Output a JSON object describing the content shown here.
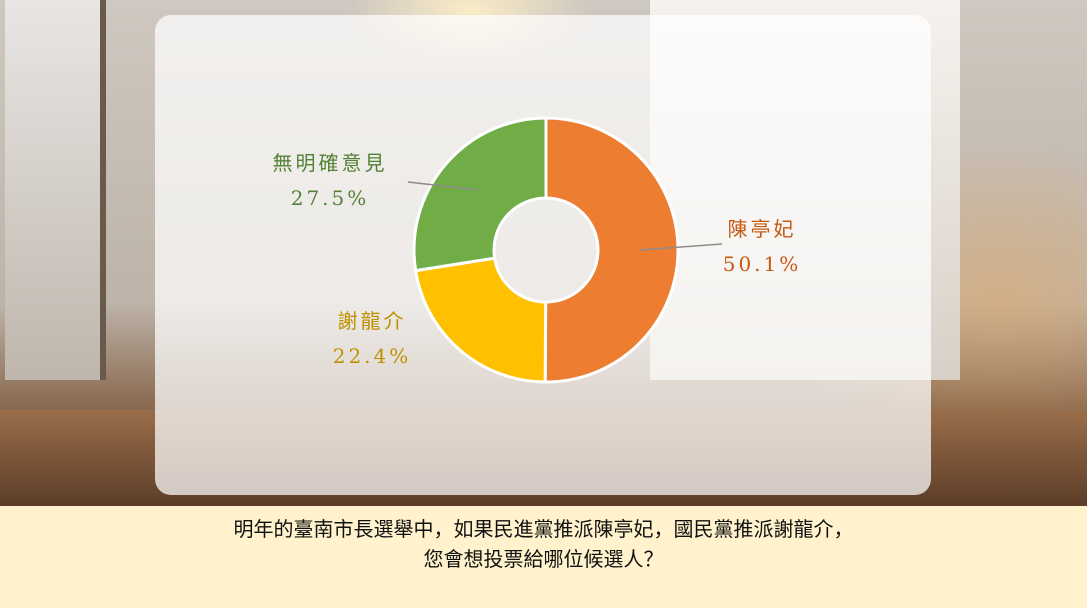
{
  "chart_data": {
    "type": "pie",
    "style": "donut",
    "start": "top, clockwise",
    "slices": [
      {
        "label": "陳亭妃",
        "value": 50.1,
        "display": "50.1%",
        "color": "#ed7d31",
        "text_color": "#c55a11"
      },
      {
        "label": "謝龍介",
        "value": 22.4,
        "display": "22.4%",
        "color": "#ffc000",
        "text_color": "#bf9000"
      },
      {
        "label": "無明確意見",
        "value": 27.5,
        "display": "27.5%",
        "color": "#70ad47",
        "text_color": "#548235"
      }
    ]
  },
  "caption": {
    "line1": "明年的臺南市長選舉中，如果民進黨推派陳亭妃，國民黨推派謝龍介，",
    "line2": "您會想投票給哪位候選人？"
  }
}
